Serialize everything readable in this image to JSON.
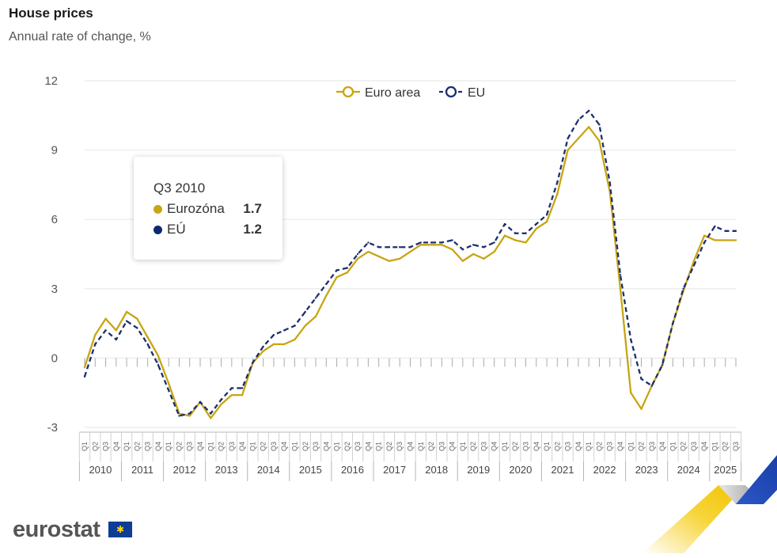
{
  "header": {
    "title": "House prices",
    "subtitle": "Annual rate of change, %"
  },
  "tooltip": {
    "period": "Q3 2010",
    "rows": [
      {
        "label": "Eurozóna",
        "value": "1.7",
        "color": "#c8a512"
      },
      {
        "label": "EÚ",
        "value": "1.2",
        "color": "#0e2a6e"
      }
    ]
  },
  "logo": {
    "text": "eurostat",
    "flag_icon": "eu-flag-icon"
  },
  "colors": {
    "euro_area": "#c8a512",
    "eu": "#1c2f6e",
    "grid": "#e6e6e6",
    "axis": "#b5b5b5"
  },
  "chart_data": {
    "type": "line",
    "ylim": [
      -3,
      12
    ],
    "yticks": [
      -3,
      0,
      3,
      6,
      9,
      12
    ],
    "grid": true,
    "legend_placement": "top-center",
    "quarter_labels": [
      "Q1",
      "Q2",
      "Q3",
      "Q4"
    ],
    "years": [
      "2010",
      "2011",
      "2012",
      "2013",
      "2014",
      "2015",
      "2016",
      "2017",
      "2018",
      "2019",
      "2020",
      "2021",
      "2022",
      "2023",
      "2024",
      "2025"
    ],
    "x": [
      "2010-Q1",
      "2010-Q2",
      "2010-Q3",
      "2010-Q4",
      "2011-Q1",
      "2011-Q2",
      "2011-Q3",
      "2011-Q4",
      "2012-Q1",
      "2012-Q2",
      "2012-Q3",
      "2012-Q4",
      "2013-Q1",
      "2013-Q2",
      "2013-Q3",
      "2013-Q4",
      "2014-Q1",
      "2014-Q2",
      "2014-Q3",
      "2014-Q4",
      "2015-Q1",
      "2015-Q2",
      "2015-Q3",
      "2015-Q4",
      "2016-Q1",
      "2016-Q2",
      "2016-Q3",
      "2016-Q4",
      "2017-Q1",
      "2017-Q2",
      "2017-Q3",
      "2017-Q4",
      "2018-Q1",
      "2018-Q2",
      "2018-Q3",
      "2018-Q4",
      "2019-Q1",
      "2019-Q2",
      "2019-Q3",
      "2019-Q4",
      "2020-Q1",
      "2020-Q2",
      "2020-Q3",
      "2020-Q4",
      "2021-Q1",
      "2021-Q2",
      "2021-Q3",
      "2021-Q4",
      "2022-Q1",
      "2022-Q2",
      "2022-Q3",
      "2022-Q4",
      "2023-Q1",
      "2023-Q2",
      "2023-Q3",
      "2023-Q4",
      "2024-Q1",
      "2024-Q2",
      "2024-Q3",
      "2024-Q4",
      "2025-Q1",
      "2025-Q2",
      "2025-Q3"
    ],
    "series": [
      {
        "name": "Euro area",
        "style": "solid",
        "values": [
          -0.4,
          1.0,
          1.7,
          1.2,
          2.0,
          1.7,
          0.9,
          0.1,
          -1.1,
          -2.4,
          -2.5,
          -1.9,
          -2.6,
          -2.0,
          -1.6,
          -1.6,
          -0.2,
          0.3,
          0.6,
          0.6,
          0.8,
          1.4,
          1.8,
          2.7,
          3.5,
          3.7,
          4.3,
          4.6,
          4.4,
          4.2,
          4.3,
          4.6,
          4.9,
          4.9,
          4.9,
          4.7,
          4.2,
          4.5,
          4.3,
          4.6,
          5.3,
          5.1,
          5.0,
          5.6,
          5.9,
          7.1,
          9.0,
          9.5,
          10.0,
          9.4,
          7.2,
          3.0,
          -1.5,
          -2.2,
          -1.2,
          -0.3,
          1.5,
          2.9,
          4.2,
          5.3,
          5.1,
          5.1,
          5.1
        ]
      },
      {
        "name": "EU",
        "style": "dashed",
        "values": [
          -0.8,
          0.6,
          1.2,
          0.8,
          1.6,
          1.3,
          0.6,
          -0.3,
          -1.4,
          -2.5,
          -2.4,
          -1.9,
          -2.4,
          -1.8,
          -1.3,
          -1.3,
          -0.2,
          0.5,
          1.0,
          1.2,
          1.4,
          2.0,
          2.6,
          3.2,
          3.8,
          3.9,
          4.5,
          5.0,
          4.8,
          4.8,
          4.8,
          4.8,
          5.0,
          5.0,
          5.0,
          5.1,
          4.7,
          4.9,
          4.8,
          5.0,
          5.8,
          5.4,
          5.4,
          5.8,
          6.2,
          7.6,
          9.5,
          10.3,
          10.7,
          10.1,
          7.6,
          3.6,
          0.8,
          -0.9,
          -1.2,
          -0.3,
          1.5,
          3.0,
          4.0,
          5.0,
          5.7,
          5.5,
          5.5
        ]
      }
    ]
  }
}
